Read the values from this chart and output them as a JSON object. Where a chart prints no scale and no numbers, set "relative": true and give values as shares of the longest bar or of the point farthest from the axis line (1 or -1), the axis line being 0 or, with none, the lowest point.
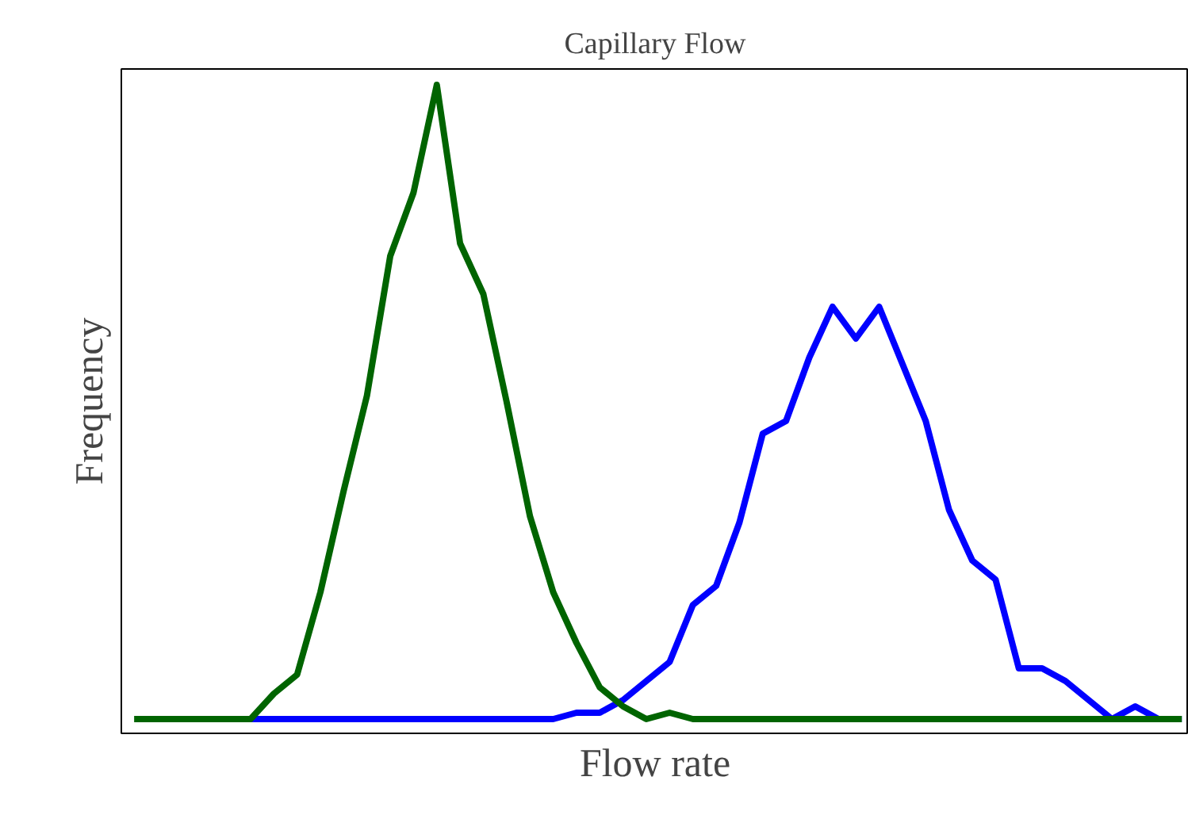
{
  "chart_data": {
    "type": "line",
    "title": "Capillary Flow",
    "xlabel": "Flow rate",
    "ylabel": "Frequency",
    "relative": true,
    "categories": [
      null,
      null,
      null,
      null,
      null,
      null,
      null,
      null,
      null,
      null,
      null,
      null,
      null,
      null,
      null,
      null,
      null,
      null,
      null,
      null,
      null,
      null,
      null,
      null,
      null,
      null,
      null,
      null,
      null,
      null,
      null,
      null,
      null,
      null,
      null,
      null,
      null,
      null,
      null,
      null,
      null,
      null,
      null,
      null,
      null,
      null
    ],
    "series": [
      {
        "color": "#0000ff",
        "values": [
          null,
          null,
          null,
          null,
          null,
          0,
          0,
          0,
          0,
          0,
          0,
          0,
          0,
          0,
          0,
          0,
          0,
          0,
          0,
          0.01,
          0.01,
          0.03,
          0.06,
          0.09,
          0.18,
          0.21,
          0.31,
          0.45,
          0.47,
          0.57,
          0.65,
          0.6,
          0.65,
          0.56,
          0.47,
          0.33,
          0.25,
          0.22,
          0.08,
          0.08,
          0.06,
          0.03,
          0,
          0.02,
          0,
          0
        ]
      },
      {
        "color": "#006400",
        "values": [
          0,
          0,
          0,
          0,
          0,
          0,
          0.04,
          0.07,
          0.2,
          0.36,
          0.51,
          0.73,
          0.83,
          1,
          0.75,
          0.67,
          0.5,
          0.32,
          0.2,
          0.12,
          0.05,
          0.02,
          0,
          0.01,
          0,
          0,
          0,
          0,
          0,
          0,
          0,
          0,
          0,
          0,
          0,
          0,
          0,
          0,
          0,
          0,
          0,
          0,
          0,
          0,
          0,
          0
        ]
      }
    ]
  }
}
